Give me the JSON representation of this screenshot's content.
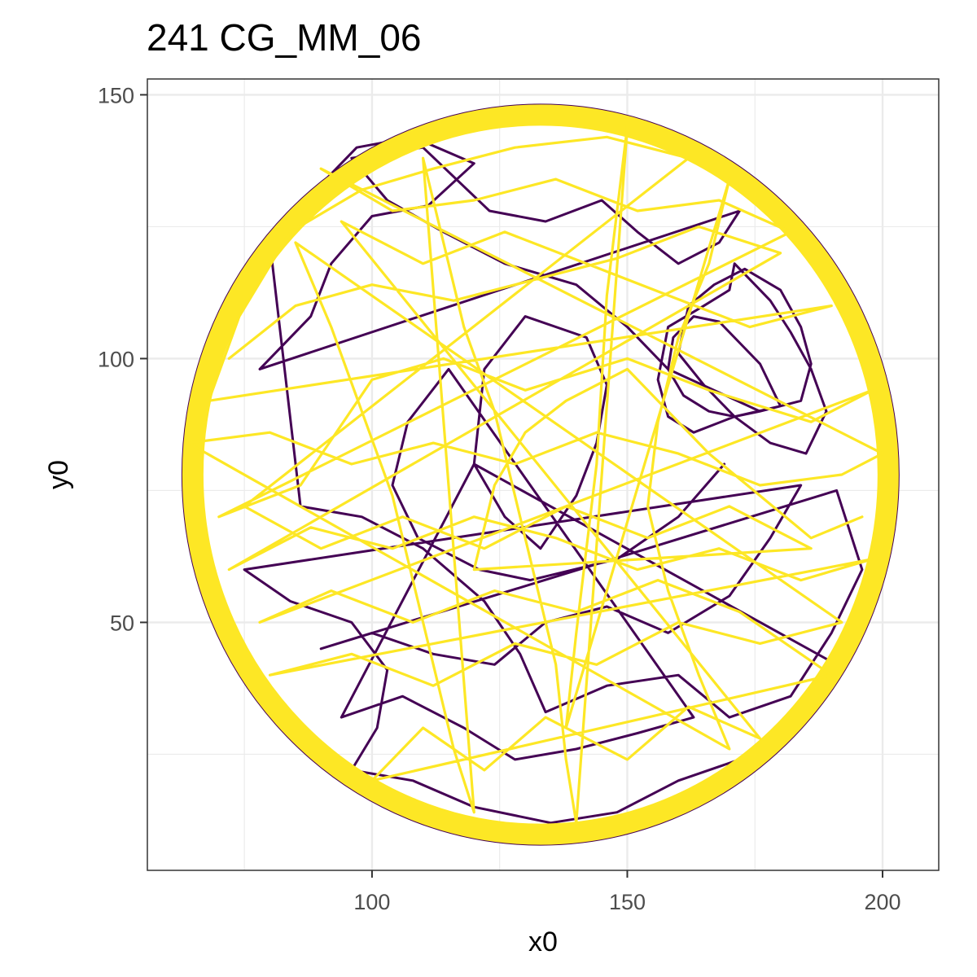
{
  "chart_data": {
    "type": "line",
    "title": "241 CG_MM_06",
    "xlabel": "x0",
    "ylabel": "y0",
    "xlim": [
      56,
      211
    ],
    "ylim": [
      3,
      153
    ],
    "x_ticks": [
      100,
      150,
      200
    ],
    "y_ticks": [
      50,
      100,
      150
    ],
    "x_minor_ticks": [
      75,
      125,
      175
    ],
    "y_minor_ticks": [
      25,
      75,
      125
    ],
    "grid": true,
    "legend": "none",
    "arena": {
      "center": [
        133,
        78
      ],
      "radius": 70
    },
    "series": [
      {
        "color": "#440154",
        "values": [
          [
            180,
            91
          ],
          [
            176,
            90
          ],
          [
            171,
            89
          ],
          [
            166,
            90
          ],
          [
            161,
            93
          ],
          [
            158,
            98
          ],
          [
            159,
            104
          ],
          [
            163,
            108
          ],
          [
            168,
            107
          ],
          [
            172,
            103
          ],
          [
            176,
            99
          ],
          [
            180,
            91
          ],
          [
            171,
            89
          ],
          [
            163,
            86
          ],
          [
            158,
            89
          ],
          [
            156,
            96
          ],
          [
            158,
            106
          ],
          [
            165,
            110
          ],
          [
            170,
            113
          ],
          [
            171,
            118
          ],
          [
            174,
            115
          ],
          [
            178,
            111
          ],
          [
            182,
            105
          ],
          [
            186,
            98
          ],
          [
            189,
            90
          ],
          [
            185,
            82
          ],
          [
            178,
            84
          ],
          [
            171,
            89
          ],
          [
            165,
            95
          ],
          [
            160,
            101
          ],
          [
            162,
            110
          ],
          [
            167,
            114
          ],
          [
            173,
            117
          ],
          [
            180,
            113
          ],
          [
            184,
            106
          ],
          [
            186,
            99
          ],
          [
            184,
            92
          ],
          [
            176,
            90
          ],
          [
            158,
            98
          ],
          [
            150,
            106
          ],
          [
            140,
            114
          ],
          [
            126,
            118
          ],
          [
            114,
            124
          ],
          [
            103,
            130
          ],
          [
            96,
            138
          ],
          [
            110,
            140
          ],
          [
            123,
            128
          ],
          [
            134,
            126
          ],
          [
            145,
            130
          ],
          [
            152,
            124
          ],
          [
            160,
            118
          ],
          [
            168,
            122
          ],
          [
            172,
            128
          ],
          [
            78,
            98
          ],
          [
            88,
            108
          ],
          [
            92,
            118
          ],
          [
            100,
            127
          ],
          [
            111,
            129
          ],
          [
            120,
            137
          ],
          [
            108,
            142
          ],
          [
            97,
            140
          ],
          [
            89,
            132
          ],
          [
            80,
            122
          ],
          [
            86,
            72
          ],
          [
            98,
            70
          ],
          [
            110,
            64
          ],
          [
            122,
            54
          ],
          [
            129,
            44
          ],
          [
            134,
            33
          ],
          [
            146,
            38
          ],
          [
            160,
            40
          ],
          [
            170,
            32
          ],
          [
            182,
            36
          ],
          [
            190,
            48
          ],
          [
            196,
            60
          ],
          [
            191,
            75
          ],
          [
            90,
            45
          ],
          [
            100,
            48
          ],
          [
            112,
            44
          ],
          [
            124,
            42
          ],
          [
            134,
            50
          ],
          [
            146,
            53
          ],
          [
            158,
            48
          ],
          [
            170,
            55
          ],
          [
            178,
            66
          ],
          [
            184,
            76
          ],
          [
            75,
            60
          ],
          [
            84,
            54
          ],
          [
            96,
            50
          ],
          [
            103,
            41
          ],
          [
            101,
            30
          ],
          [
            96,
            22
          ],
          [
            108,
            20
          ],
          [
            120,
            15
          ],
          [
            135,
            12
          ],
          [
            148,
            14
          ],
          [
            160,
            20
          ],
          [
            172,
            24
          ],
          [
            184,
            34
          ],
          [
            191,
            42
          ],
          [
            120,
            80
          ],
          [
            126,
            70
          ],
          [
            133,
            64
          ],
          [
            140,
            74
          ],
          [
            144,
            84
          ],
          [
            146,
            95
          ],
          [
            142,
            104
          ],
          [
            130,
            108
          ],
          [
            122,
            98
          ],
          [
            120,
            80
          ],
          [
            94,
            32
          ],
          [
            106,
            36
          ],
          [
            118,
            30
          ],
          [
            128,
            24
          ],
          [
            140,
            26
          ],
          [
            152,
            29
          ],
          [
            163,
            32
          ],
          [
            115,
            98
          ],
          [
            107,
            88
          ],
          [
            104,
            76
          ],
          [
            109,
            66
          ],
          [
            121,
            60
          ],
          [
            131,
            58
          ],
          [
            148,
            62
          ],
          [
            160,
            70
          ],
          [
            169,
            80
          ]
        ]
      },
      {
        "color": "#fde725",
        "values": [
          [
            72,
            100
          ],
          [
            85,
            110
          ],
          [
            100,
            114
          ],
          [
            116,
            111
          ],
          [
            132,
            115
          ],
          [
            148,
            119
          ],
          [
            164,
            125
          ],
          [
            180,
            120
          ],
          [
            72,
            60
          ],
          [
            88,
            68
          ],
          [
            104,
            64
          ],
          [
            120,
            70
          ],
          [
            136,
            66
          ],
          [
            152,
            60
          ],
          [
            168,
            64
          ],
          [
            184,
            58
          ],
          [
            198,
            62
          ],
          [
            80,
            40
          ],
          [
            96,
            44
          ],
          [
            112,
            38
          ],
          [
            128,
            46
          ],
          [
            144,
            42
          ],
          [
            160,
            50
          ],
          [
            176,
            46
          ],
          [
            192,
            50
          ],
          [
            85,
            122
          ],
          [
            92,
            106
          ],
          [
            98,
            90
          ],
          [
            104,
            74
          ],
          [
            108,
            58
          ],
          [
            112,
            42
          ],
          [
            116,
            26
          ],
          [
            120,
            14
          ],
          [
            110,
            138
          ],
          [
            114,
            122
          ],
          [
            118,
            106
          ],
          [
            124,
            90
          ],
          [
            128,
            74
          ],
          [
            132,
            58
          ],
          [
            136,
            42
          ],
          [
            138,
            24
          ],
          [
            140,
            12
          ],
          [
            150,
            144
          ],
          [
            148,
            128
          ],
          [
            146,
            112
          ],
          [
            145,
            96
          ],
          [
            144,
            80
          ],
          [
            142,
            64
          ],
          [
            140,
            48
          ],
          [
            138,
            30
          ],
          [
            170,
            134
          ],
          [
            166,
            118
          ],
          [
            160,
            104
          ],
          [
            156,
            88
          ],
          [
            154,
            72
          ],
          [
            158,
            56
          ],
          [
            164,
            40
          ],
          [
            170,
            26
          ],
          [
            64,
            84
          ],
          [
            80,
            86
          ],
          [
            96,
            80
          ],
          [
            112,
            84
          ],
          [
            128,
            80
          ],
          [
            144,
            86
          ],
          [
            160,
            82
          ],
          [
            176,
            76
          ],
          [
            192,
            78
          ],
          [
            200,
            82
          ],
          [
            90,
            136
          ],
          [
            104,
            128
          ],
          [
            120,
            130
          ],
          [
            136,
            134
          ],
          [
            152,
            128
          ],
          [
            168,
            130
          ],
          [
            182,
            124
          ],
          [
            70,
            70
          ],
          [
            86,
            76
          ],
          [
            100,
            96
          ],
          [
            114,
            100
          ],
          [
            130,
            94
          ],
          [
            150,
            100
          ],
          [
            166,
            94
          ],
          [
            186,
            88
          ],
          [
            198,
            94
          ],
          [
            78,
            50
          ],
          [
            92,
            56
          ],
          [
            108,
            50
          ],
          [
            124,
            56
          ],
          [
            140,
            52
          ],
          [
            156,
            58
          ],
          [
            172,
            52
          ],
          [
            190,
            40
          ],
          [
            100,
            20
          ],
          [
            110,
            30
          ],
          [
            122,
            22
          ],
          [
            134,
            32
          ],
          [
            150,
            24
          ],
          [
            162,
            34
          ],
          [
            176,
            28
          ],
          [
            94,
            126
          ],
          [
            110,
            118
          ],
          [
            126,
            124
          ],
          [
            142,
            118
          ],
          [
            158,
            112
          ],
          [
            174,
            106
          ],
          [
            190,
            110
          ],
          [
            68,
            92
          ],
          [
            74,
            108
          ],
          [
            84,
            124
          ],
          [
            98,
            132
          ],
          [
            112,
            136
          ],
          [
            128,
            140
          ],
          [
            146,
            142
          ],
          [
            162,
            138
          ],
          [
            75,
            72
          ],
          [
            90,
            64
          ],
          [
            106,
            70
          ],
          [
            122,
            64
          ],
          [
            138,
            72
          ],
          [
            154,
            66
          ],
          [
            170,
            72
          ],
          [
            186,
            64
          ],
          [
            120,
            60
          ],
          [
            124,
            76
          ],
          [
            130,
            86
          ],
          [
            138,
            92
          ],
          [
            150,
            98
          ],
          [
            158,
            90
          ],
          [
            166,
            82
          ],
          [
            176,
            74
          ],
          [
            186,
            66
          ],
          [
            196,
            70
          ]
        ]
      }
    ]
  }
}
